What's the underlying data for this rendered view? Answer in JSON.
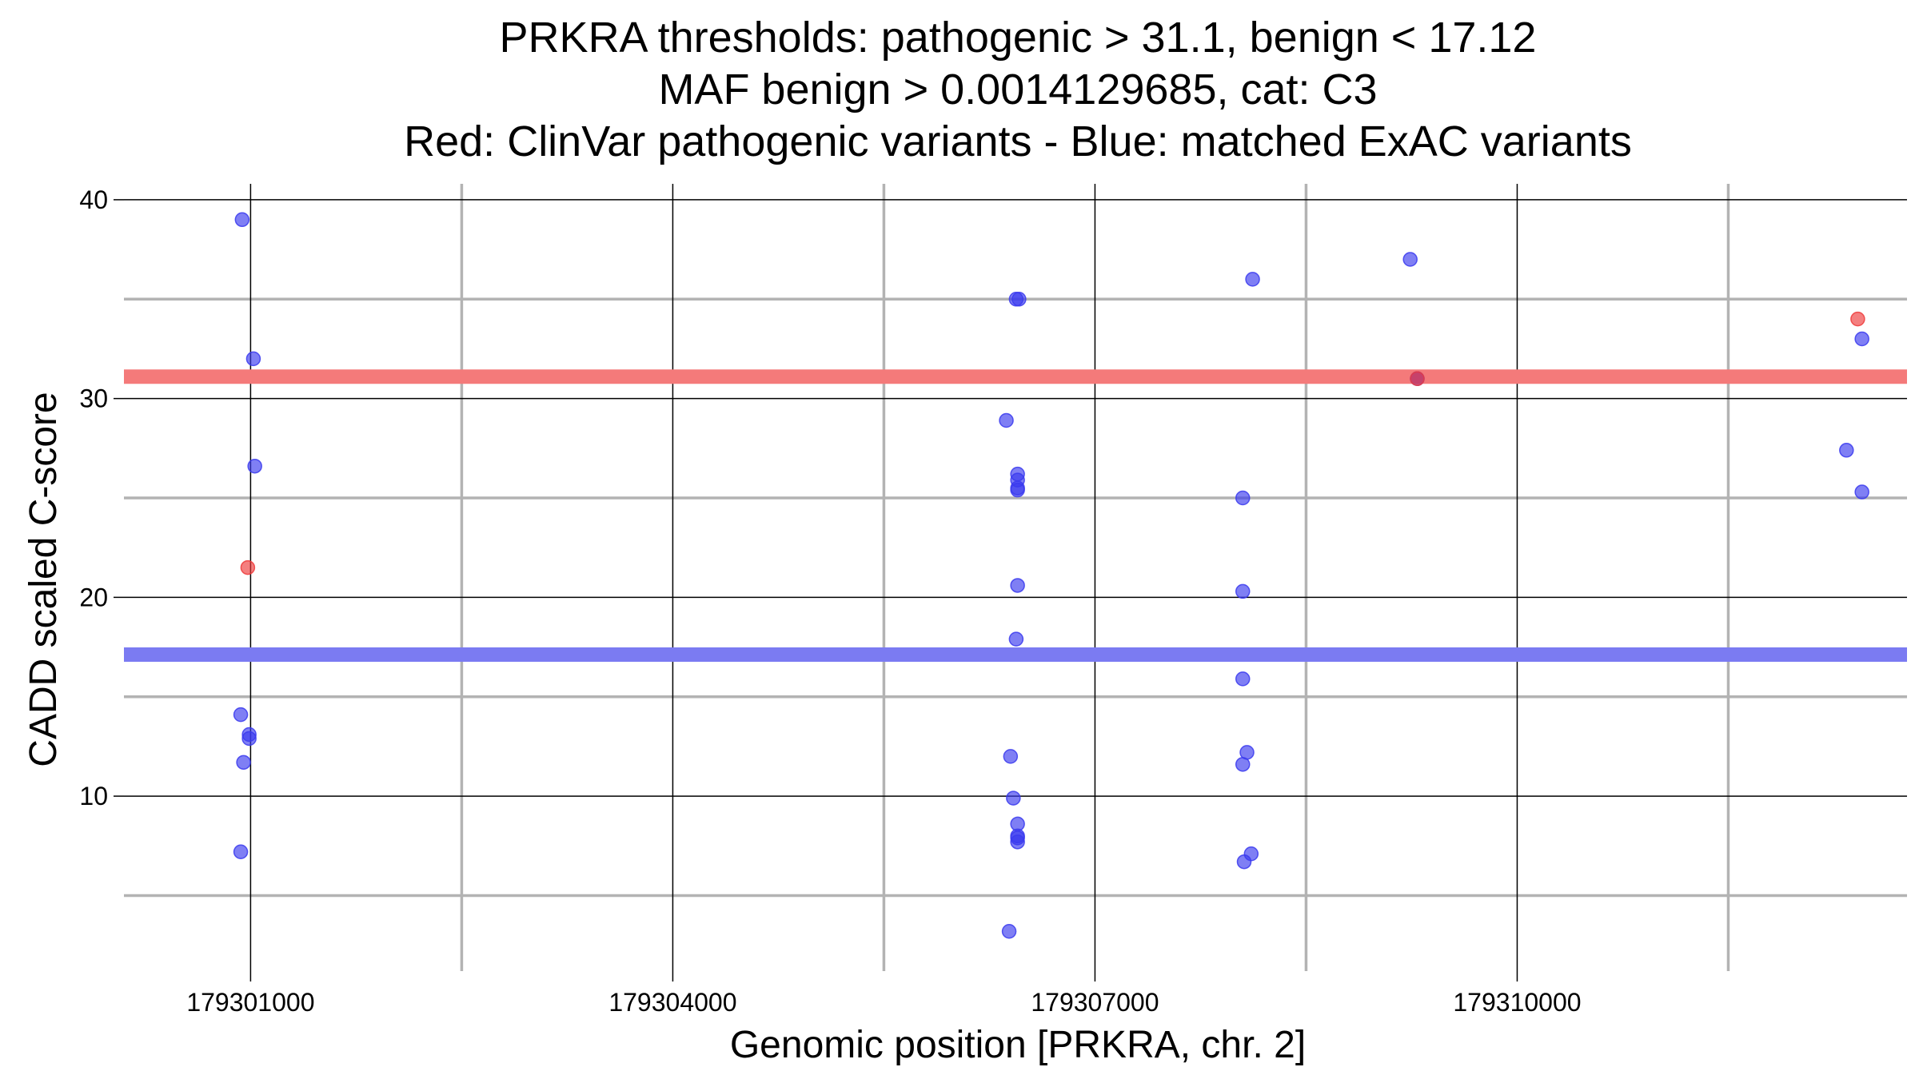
{
  "chart_data": {
    "type": "scatter",
    "title_lines": [
      "PRKRA thresholds: pathogenic > 31.1, benign < 17.12",
      "MAF benign > 0.0014129685, cat: C3",
      "Red: ClinVar pathogenic variants - Blue: matched ExAC variants"
    ],
    "xlabel": "Genomic position [PRKRA, chr. 2]",
    "ylabel": "CADD scaled C-score",
    "xlim": [
      179300100,
      179312770
    ],
    "ylim": [
      1.2,
      40.8
    ],
    "x_ticks": [
      179301000,
      179304000,
      179307000,
      179310000
    ],
    "x_tick_labels": [
      "179301000",
      "179304000",
      "179307000",
      "179310000"
    ],
    "x_minor_ticks": [
      179302500,
      179305500,
      179308500,
      179311500
    ],
    "y_ticks": [
      10,
      20,
      30,
      40
    ],
    "y_tick_labels": [
      "10",
      "20",
      "30",
      "40"
    ],
    "y_minor_ticks": [
      5,
      15,
      25,
      35
    ],
    "grid": true,
    "thresholds": [
      {
        "value": 31.1,
        "color": "#f47a7a"
      },
      {
        "value": 17.12,
        "color": "#7b7bf2"
      }
    ],
    "series": [
      {
        "color": "#3a3aee",
        "points": [
          [
            179300940,
            39.0
          ],
          [
            179301020,
            32.0
          ],
          [
            179301030,
            26.6
          ],
          [
            179300930,
            14.1
          ],
          [
            179300990,
            13.1
          ],
          [
            179300990,
            12.9
          ],
          [
            179300950,
            11.7
          ],
          [
            179300930,
            7.2
          ],
          [
            179306440,
            35.0
          ],
          [
            179306460,
            35.0
          ],
          [
            179306370,
            28.9
          ],
          [
            179306450,
            26.2
          ],
          [
            179306450,
            25.9
          ],
          [
            179306450,
            25.5
          ],
          [
            179306450,
            25.4
          ],
          [
            179306450,
            20.6
          ],
          [
            179306440,
            17.9
          ],
          [
            179306400,
            12.0
          ],
          [
            179306420,
            9.9
          ],
          [
            179306450,
            8.6
          ],
          [
            179306450,
            8.0
          ],
          [
            179306450,
            7.9
          ],
          [
            179306450,
            7.7
          ],
          [
            179306390,
            3.2
          ],
          [
            179308120,
            36.0
          ],
          [
            179308050,
            25.0
          ],
          [
            179308050,
            20.3
          ],
          [
            179308050,
            15.9
          ],
          [
            179308080,
            12.2
          ],
          [
            179308050,
            11.6
          ],
          [
            179308110,
            7.1
          ],
          [
            179308060,
            6.7
          ],
          [
            179309240,
            37.0
          ],
          [
            179309290,
            31.0
          ],
          [
            179312340,
            27.4
          ],
          [
            179312450,
            33.0
          ],
          [
            179312450,
            25.3
          ]
        ]
      },
      {
        "color": "#ee3b3b",
        "points": [
          [
            179300980,
            21.5
          ],
          [
            179309290,
            31.0
          ],
          [
            179312420,
            34.0
          ]
        ]
      }
    ]
  }
}
